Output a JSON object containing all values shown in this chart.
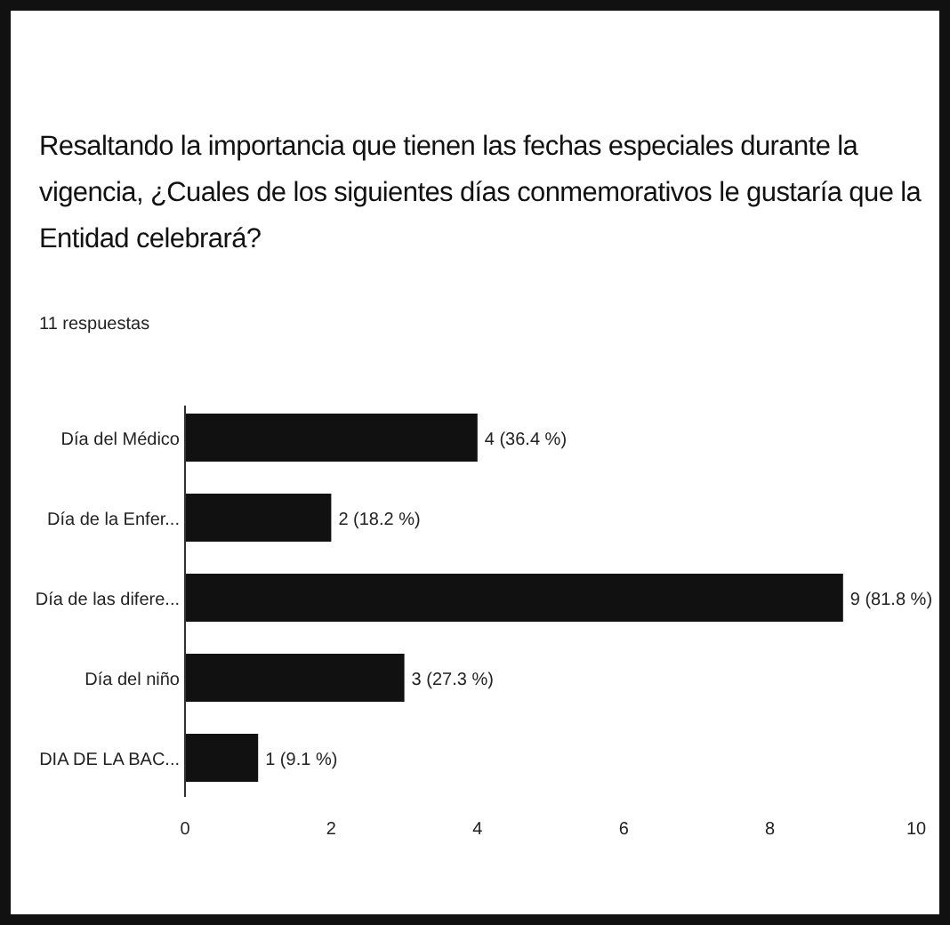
{
  "chart_data": {
    "type": "bar",
    "orientation": "horizontal",
    "title": "Resaltando la importancia que tienen las fechas especiales durante la vigencia, ¿Cuales de los siguientes días conmemorativos le gustaría que la Entidad celebrará?",
    "subtitle": "11 respuestas",
    "categories": [
      "Día del Médico",
      "Día de la Enfer...",
      "Día de las difere...",
      "Día del niño",
      "DIA DE LA BAC..."
    ],
    "values": [
      4,
      2,
      9,
      3,
      1
    ],
    "color": "#111111",
    "value_labels": [
      "4 (36.4 %)",
      "2 (18.2 %)",
      "9 (81.8 %)",
      "3 (27.3 %)",
      "1 (9.1 %)"
    ],
    "xlim": [
      0,
      10
    ],
    "xticks": [
      0,
      2,
      4,
      6,
      8,
      10
    ],
    "grid": false
  }
}
